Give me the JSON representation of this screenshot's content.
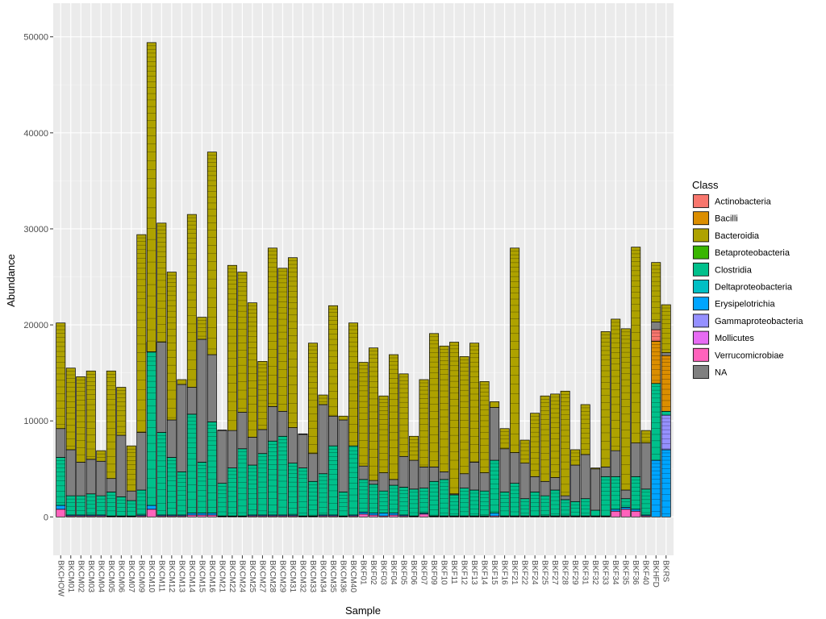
{
  "chart_data": {
    "type": "bar",
    "stacked": true,
    "xlabel": "Sample",
    "ylabel": "Abundance",
    "ylim": [
      -4000,
      53500
    ],
    "yticks": [
      0,
      10000,
      20000,
      30000,
      40000,
      50000
    ],
    "grid": true,
    "legend": {
      "title": "Class",
      "placement": "right",
      "entries": [
        {
          "name": "Actinobacteria",
          "color": "#F8766D"
        },
        {
          "name": "Bacilli",
          "color": "#DB8E00"
        },
        {
          "name": "Bacteroidia",
          "color": "#AEA200"
        },
        {
          "name": "Betaproteobacteria",
          "color": "#39B600"
        },
        {
          "name": "Clostridia",
          "color": "#00C08B"
        },
        {
          "name": "Deltaproteobacteria",
          "color": "#00BFC4"
        },
        {
          "name": "Erysipelotrichia",
          "color": "#00A5FF"
        },
        {
          "name": "Gammaproteobacteria",
          "color": "#9590FF"
        },
        {
          "name": "Mollicutes",
          "color": "#E76BF3"
        },
        {
          "name": "Verrucomicrobiae",
          "color": "#FF62BC"
        },
        {
          "name": "NA",
          "color": "#7F7F7F"
        }
      ]
    },
    "categories": [
      "BKCHOW",
      "BKCM01",
      "BKCM02",
      "BKCM03",
      "BKCM04",
      "BKCM05",
      "BKCM06",
      "BKCM07",
      "BKCM09",
      "BKCM10",
      "BKCM11",
      "BKCM12",
      "BKCM13",
      "BKCM14",
      "BKCM15",
      "BKCM16",
      "BKCM21",
      "BKCM22",
      "BKCM24",
      "BKCM25",
      "BKCM27",
      "BKCM28",
      "BKCM29",
      "BKCM31",
      "BKCM32",
      "BKCM33",
      "BKCM34",
      "BKCM35",
      "BKCM36",
      "BKCM40",
      "BKF01",
      "BKF02",
      "BKF03",
      "BKF04",
      "BKF05",
      "BKF06",
      "BKF07",
      "BKF09",
      "BKF10",
      "BKF11",
      "BKF12",
      "BKF13",
      "BKF14",
      "BKF15",
      "BKF16",
      "BKF21",
      "BKF22",
      "BKF24",
      "BKF25",
      "BKF27",
      "BKF28",
      "BKF29",
      "BKF31",
      "BKF32",
      "BKF33",
      "BKF34",
      "BKF35",
      "BKF36",
      "BKF40",
      "BKHFD",
      "BKRS"
    ],
    "series": [
      {
        "name": "Verrucomicrobiae",
        "values": [
          800,
          100,
          100,
          100,
          100,
          50,
          50,
          50,
          100,
          800,
          100,
          100,
          100,
          200,
          200,
          200,
          50,
          50,
          50,
          100,
          100,
          100,
          100,
          100,
          50,
          50,
          100,
          100,
          50,
          100,
          300,
          200,
          100,
          200,
          100,
          50,
          300,
          50,
          50,
          50,
          50,
          50,
          50,
          100,
          50,
          50,
          50,
          50,
          50,
          50,
          50,
          50,
          50,
          50,
          50,
          600,
          800,
          600,
          100,
          0,
          0
        ]
      },
      {
        "name": "Erysipelotrichia",
        "values": [
          400,
          100,
          100,
          100,
          100,
          50,
          50,
          50,
          100,
          400,
          100,
          100,
          100,
          200,
          200,
          200,
          50,
          50,
          50,
          100,
          100,
          100,
          100,
          100,
          50,
          50,
          100,
          100,
          50,
          100,
          200,
          200,
          300,
          200,
          100,
          50,
          100,
          50,
          50,
          50,
          50,
          50,
          50,
          300,
          50,
          50,
          50,
          50,
          50,
          50,
          50,
          50,
          50,
          50,
          50,
          200,
          200,
          200,
          100,
          5900,
          7000
        ]
      },
      {
        "name": "Gammaproteobacteria",
        "values": [
          0,
          0,
          0,
          0,
          0,
          0,
          0,
          0,
          0,
          0,
          0,
          0,
          0,
          0,
          0,
          0,
          0,
          0,
          0,
          0,
          0,
          0,
          0,
          0,
          0,
          0,
          0,
          0,
          0,
          0,
          0,
          0,
          0,
          0,
          0,
          0,
          0,
          0,
          0,
          0,
          0,
          0,
          0,
          0,
          0,
          0,
          0,
          0,
          0,
          0,
          0,
          0,
          0,
          0,
          0,
          0,
          0,
          0,
          0,
          0,
          3600
        ]
      },
      {
        "name": "Clostridia",
        "values": [
          5000,
          2000,
          2000,
          2200,
          2000,
          2500,
          2000,
          1600,
          2600,
          17000,
          8600,
          6000,
          4500,
          10300,
          5300,
          9500,
          3400,
          5000,
          7000,
          5200,
          6400,
          7700,
          8200,
          5400,
          5000,
          3600,
          4300,
          7200,
          2500,
          7400,
          3400,
          3000,
          2300,
          2900,
          2900,
          2800,
          2600,
          3600,
          3800,
          2200,
          2900,
          2700,
          2600,
          5500,
          2500,
          3400,
          1800,
          2500,
          2100,
          2700,
          1700,
          1500,
          1800,
          600,
          4100,
          3400,
          900,
          3400,
          2700,
          8000,
          400
        ]
      },
      {
        "name": "Bacilli",
        "values": [
          0,
          0,
          0,
          0,
          0,
          0,
          0,
          0,
          0,
          0,
          0,
          0,
          0,
          0,
          0,
          0,
          0,
          0,
          0,
          0,
          0,
          0,
          0,
          0,
          0,
          0,
          0,
          0,
          0,
          0,
          0,
          0,
          0,
          0,
          0,
          0,
          0,
          0,
          0,
          0,
          0,
          0,
          0,
          0,
          0,
          0,
          0,
          0,
          0,
          0,
          0,
          0,
          0,
          0,
          0,
          0,
          0,
          0,
          0,
          4400,
          5800
        ]
      },
      {
        "name": "Actinobacteria",
        "values": [
          0,
          0,
          0,
          0,
          0,
          0,
          0,
          0,
          0,
          0,
          0,
          0,
          0,
          0,
          0,
          0,
          0,
          0,
          0,
          0,
          0,
          0,
          0,
          0,
          0,
          0,
          0,
          0,
          0,
          0,
          0,
          0,
          0,
          0,
          0,
          0,
          0,
          0,
          0,
          0,
          0,
          0,
          0,
          0,
          0,
          0,
          0,
          0,
          0,
          0,
          0,
          0,
          0,
          0,
          0,
          0,
          0,
          0,
          0,
          1200,
          0
        ]
      },
      {
        "name": "NA",
        "values": [
          3000,
          4800,
          3500,
          3600,
          3600,
          1400,
          6400,
          1000,
          6000,
          -1000,
          9400,
          3900,
          9100,
          2800,
          12800,
          7000,
          5500,
          3900,
          3800,
          2900,
          2500,
          3600,
          2600,
          3700,
          3500,
          2900,
          7200,
          3100,
          7500,
          -200,
          1400,
          400,
          1900,
          600,
          3200,
          3000,
          2200,
          1500,
          800,
          100,
          1500,
          2900,
          1900,
          5500,
          4500,
          3200,
          3700,
          1600,
          1500,
          1300,
          400,
          3800,
          4600,
          4300,
          1000,
          2700,
          900,
          3500,
          4800,
          800,
          300
        ]
      },
      {
        "name": "Bacteroidia",
        "values": [
          11000,
          8500,
          8900,
          9200,
          1100,
          11200,
          5000,
          4700,
          20600,
          32200,
          12400,
          15400,
          500,
          18000,
          2300,
          21100,
          50,
          17200,
          14600,
          14000,
          7100,
          16500,
          14900,
          17700,
          50,
          11500,
          1000,
          11500,
          400,
          12800,
          10800,
          13800,
          8000,
          13000,
          8600,
          2500,
          9100,
          13900,
          13100,
          15800,
          12200,
          12400,
          9500,
          600,
          2100,
          21300,
          2400,
          6600,
          8900,
          8700,
          10900,
          1600,
          5200,
          100,
          14100,
          13700,
          16800,
          20400,
          1300,
          6200,
          5000
        ]
      }
    ]
  }
}
